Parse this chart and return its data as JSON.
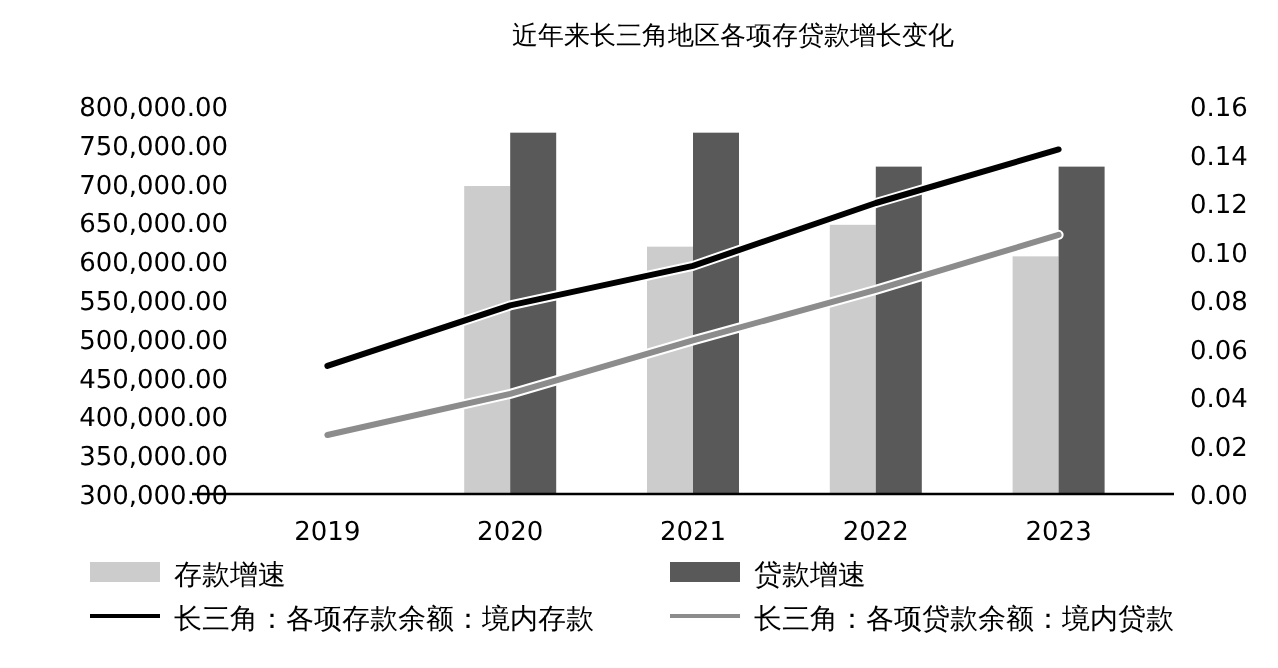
{
  "chart_data": {
    "type": "bar",
    "title": "近年来长三角地区各项存贷款增长变化",
    "categories": [
      "2019",
      "2020",
      "2021",
      "2022",
      "2023"
    ],
    "series": [
      {
        "name": "存款增速",
        "axis": "y2",
        "color": "#cccccc",
        "values": [
          null,
          0.127,
          0.102,
          0.111,
          0.098
        ]
      },
      {
        "name": "贷款增速",
        "axis": "y2",
        "color": "#595959",
        "values": [
          null,
          0.149,
          0.149,
          0.135,
          0.135
        ]
      },
      {
        "name": "长三角：各项存款余额：境内存款",
        "type": "line",
        "color": "#000000",
        "values": [
          465000,
          543000,
          594000,
          675000,
          744000
        ]
      },
      {
        "name": "长三角：各项贷款余额：境内贷款",
        "type": "line",
        "color": "#8c8c8c",
        "values": [
          376000,
          429000,
          498000,
          563000,
          634000
        ]
      }
    ],
    "ylim": [
      300000,
      800000
    ],
    "yticks": [
      {
        "value": 300000,
        "label": "300,000.00"
      },
      {
        "value": 350000,
        "label": "350,000.00"
      },
      {
        "value": 400000,
        "label": "400,000.00"
      },
      {
        "value": 450000,
        "label": "450,000.00"
      },
      {
        "value": 500000,
        "label": "500,000.00"
      },
      {
        "value": 550000,
        "label": "550,000.00"
      },
      {
        "value": 600000,
        "label": "600,000.00"
      },
      {
        "value": 650000,
        "label": "650,000.00"
      },
      {
        "value": 700000,
        "label": "700,000.00"
      },
      {
        "value": 750000,
        "label": "750,000.00"
      },
      {
        "value": 800000,
        "label": "800,000.00"
      }
    ],
    "y2lim": [
      0,
      0.16
    ],
    "y2ticks": [
      {
        "value": 0,
        "label": "0.00"
      },
      {
        "value": 0.02,
        "label": "0.02"
      },
      {
        "value": 0.04,
        "label": "0.04"
      },
      {
        "value": 0.06,
        "label": "0.06"
      },
      {
        "value": 0.08,
        "label": "0.08"
      },
      {
        "value": 0.1,
        "label": "0.10"
      },
      {
        "value": 0.12,
        "label": "0.12"
      },
      {
        "value": 0.14,
        "label": "0.14"
      },
      {
        "value": 0.16,
        "label": "0.16"
      }
    ],
    "legend": "bottom"
  }
}
